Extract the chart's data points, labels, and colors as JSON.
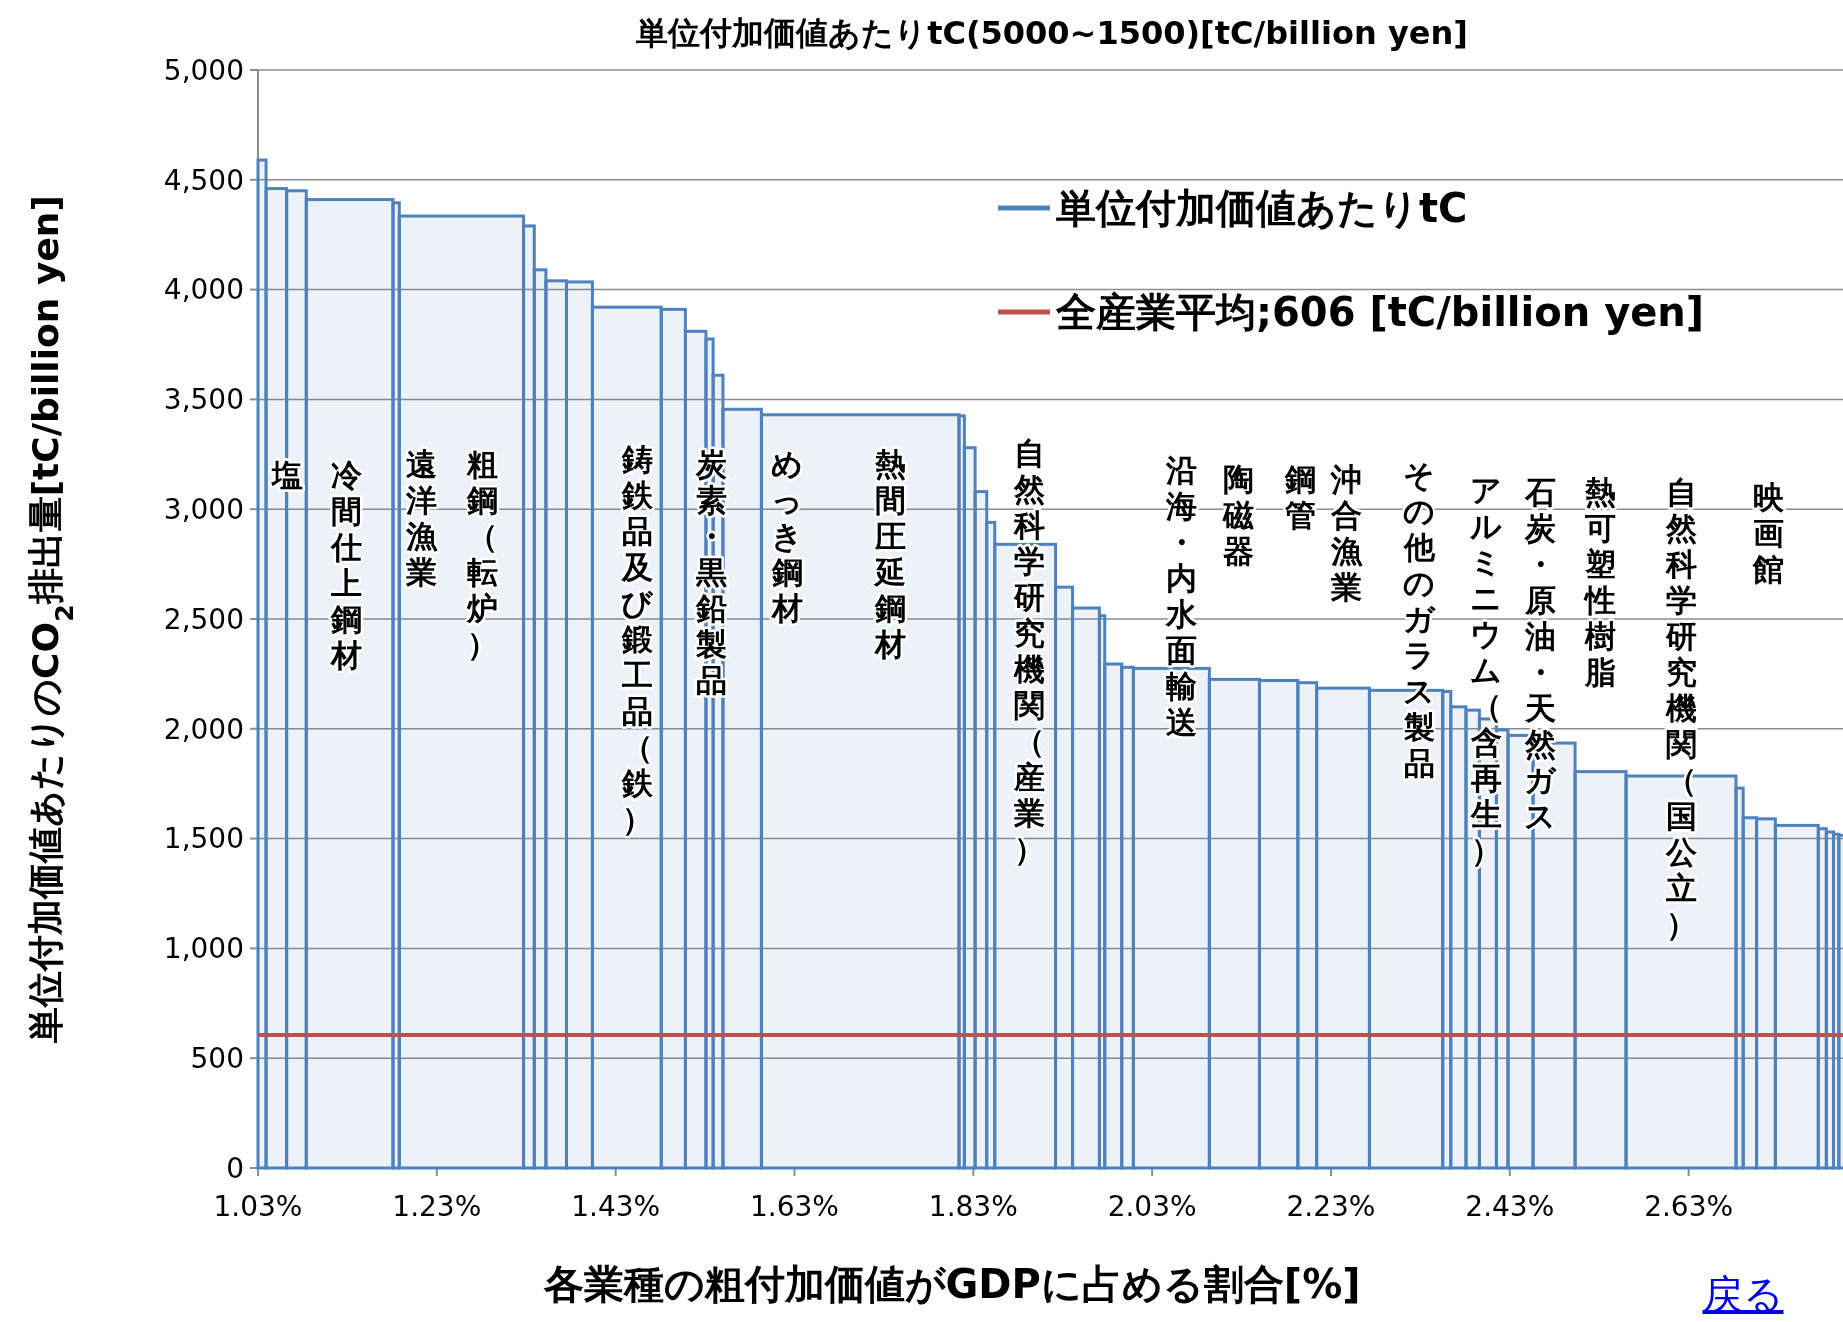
{
  "chart_data": {
    "type": "bar",
    "title": "単位付加価値あたりtC(5000~1500)[tC/billion yen]",
    "xlabel": "各業種の粗付加価値がGDPに占める割合[%]",
    "ylabel": "単位付加価値あたりのCO$_{2}$排出量[tC/billion yen]",
    "x": [
      1.0345,
      1.0505,
      1.073,
      1.1325,
      1.1845,
      1.2575,
      1.333,
      1.3455,
      1.3635,
      1.3895,
      1.4425,
      1.4945,
      1.5195,
      1.535,
      1.5445,
      1.5715,
      1.7035,
      1.817,
      1.826,
      1.8385,
      1.8495,
      1.888,
      1.9315,
      1.956,
      1.974,
      1.9865,
      2.0025,
      2.0515,
      2.122,
      2.1715,
      2.2035,
      2.2435,
      2.314,
      2.3595,
      2.3725,
      2.3885,
      2.4055,
      2.4215,
      2.442,
      2.4795,
      2.5315,
      2.6215,
      2.687,
      2.6985,
      2.7165,
      2.751,
      2.7795,
      2.788,
      2.795,
      2.802
    ],
    "series": [
      {
        "name": "単位付加価値あたりtC",
        "color": "#4f81bd",
        "values": [
          4590,
          4460,
          4450,
          4410,
          4395,
          4335,
          4290,
          4090,
          4040,
          4035,
          3920,
          3910,
          3810,
          3775,
          3610,
          3455,
          3430,
          3425,
          3280,
          3080,
          2940,
          2840,
          2645,
          2550,
          2515,
          2295,
          2280,
          2275,
          2225,
          2220,
          2210,
          2185,
          2175,
          2170,
          2100,
          2085,
          2045,
          1995,
          1970,
          1935,
          1805,
          1785,
          1730,
          1595,
          1590,
          1560,
          1545,
          1530,
          1520,
          1515
        ]
      }
    ],
    "xlim": [
      1.03,
      2.806
    ],
    "xticks": [
      {
        "value": 1.03,
        "label": "1.03%"
      },
      {
        "value": 1.23,
        "label": "1.23%"
      },
      {
        "value": 1.43,
        "label": "1.43%"
      },
      {
        "value": 1.63,
        "label": "1.63%"
      },
      {
        "value": 1.83,
        "label": "1.83%"
      },
      {
        "value": 2.03,
        "label": "2.03%"
      },
      {
        "value": 2.23,
        "label": "2.23%"
      },
      {
        "value": 2.43,
        "label": "2.43%"
      },
      {
        "value": 2.63,
        "label": "2.63%"
      }
    ],
    "ylim": [
      0,
      5000
    ],
    "yticks": [
      0,
      500,
      {
        "value": 1000,
        "label": "1,000"
      },
      {
        "value": 1500,
        "label": "1,500"
      },
      {
        "value": 2000,
        "label": "2,000"
      },
      {
        "value": 2500,
        "label": "2,500"
      },
      {
        "value": 3000,
        "label": "3,000"
      },
      {
        "value": 3500,
        "label": "3,500"
      },
      {
        "value": 4000,
        "label": "4,000"
      },
      {
        "value": 4500,
        "label": "4,500"
      },
      {
        "value": 5000,
        "label": "5,000"
      }
    ],
    "grid": "y",
    "legend": "top right",
    "ref_lines": [
      {
        "axis": "y",
        "value": 606,
        "label": "全産業平均;606 [tC/billion yen]",
        "color": "#c0504d"
      }
    ],
    "annotations": [
      "塩",
      "冷間仕上鋼材",
      "遠洋漁業",
      "粗鋼（転炉）",
      "鋳鉄品及び鍛工品（鉄）",
      "炭素・黒鉛製品",
      "めっき鋼材",
      "熱間圧延鋼材",
      "自然科学研究機関（産業）",
      "沿海・内水面輸送",
      "陶磁器",
      "鋼管",
      "沖合漁業",
      "その他のガラス製品",
      "アルミニウム（含再生）",
      "石炭・原油・天然ガス",
      "熱可塑性樹脂",
      "自然科学研究機関（国公立）",
      "映画館",
      "戻る"
    ]
  }
}
